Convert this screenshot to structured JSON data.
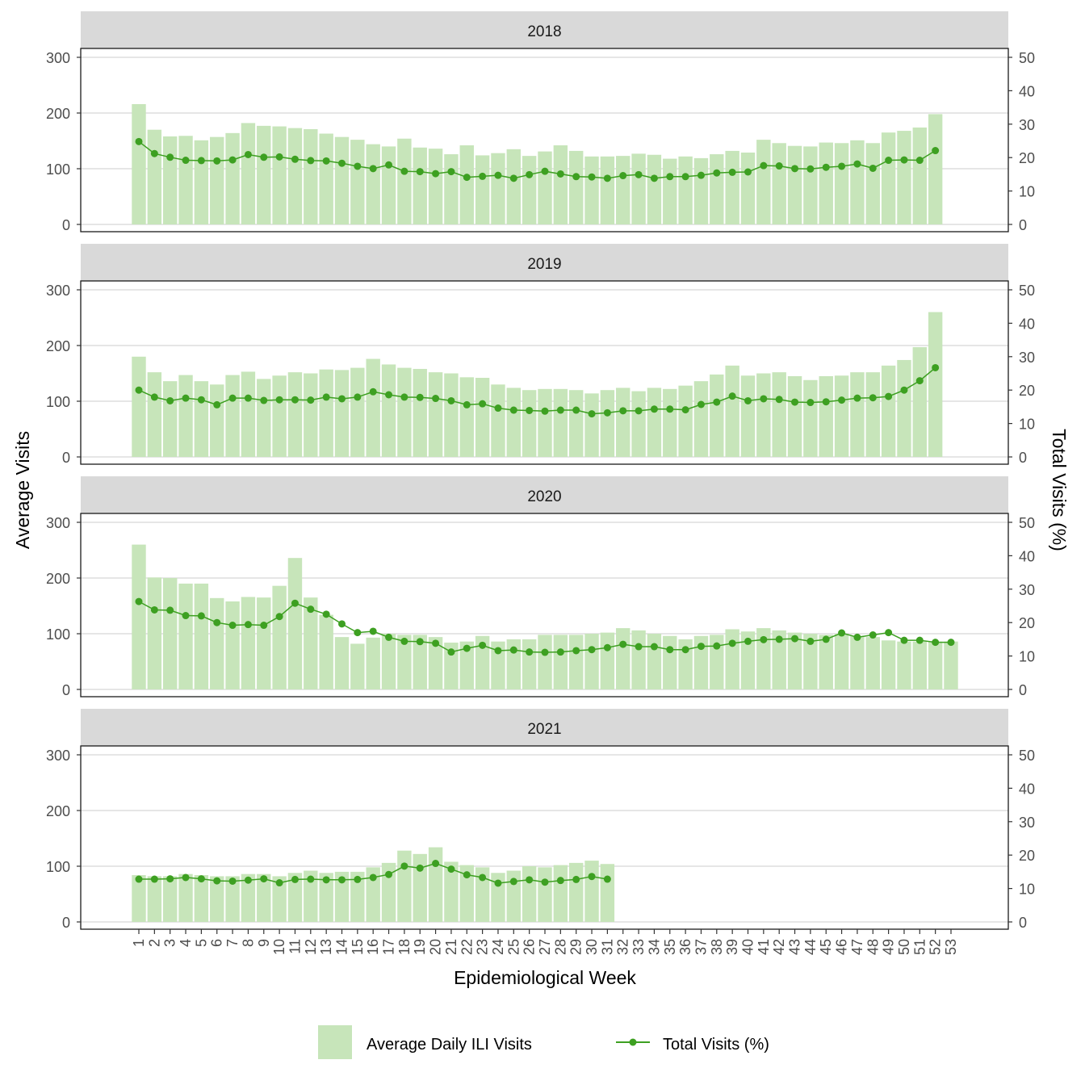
{
  "chart_data": {
    "type": "bar+line",
    "facet_by": "year",
    "xlabel": "Epidemiological Week",
    "ylabel_left": "Average Visits",
    "ylabel_right": "Total Visits (%)",
    "ylim_left": [
      0,
      300
    ],
    "ylim_right": [
      0,
      50
    ],
    "yticks_left": [
      0,
      100,
      200,
      300
    ],
    "yticks_right": [
      0,
      10,
      20,
      30,
      40,
      50
    ],
    "x_ticks": [
      1,
      2,
      3,
      4,
      5,
      6,
      7,
      8,
      9,
      10,
      11,
      12,
      13,
      14,
      15,
      16,
      17,
      18,
      19,
      20,
      21,
      22,
      23,
      24,
      25,
      26,
      27,
      28,
      29,
      30,
      31,
      32,
      33,
      34,
      35,
      36,
      37,
      38,
      39,
      40,
      41,
      42,
      43,
      44,
      45,
      46,
      47,
      48,
      49,
      50,
      51,
      52,
      53
    ],
    "grid": "horizontal",
    "legend_position": "bottom",
    "colors": {
      "bar": "#c7e5ba",
      "line": "#3da021",
      "strip": "#d9d9d9"
    },
    "legend": [
      {
        "label": "Average Daily ILI Visits",
        "kind": "bar"
      },
      {
        "label": "Total Visits (%)",
        "kind": "line"
      }
    ],
    "panels": [
      {
        "year": "2018",
        "bars": [
          216,
          170,
          158,
          159,
          151,
          157,
          164,
          182,
          177,
          176,
          173,
          171,
          163,
          157,
          152,
          144,
          140,
          154,
          138,
          136,
          126,
          142,
          124,
          128,
          135,
          123,
          131,
          142,
          132,
          122,
          122,
          123,
          127,
          125,
          118,
          122,
          119,
          126,
          132,
          129,
          152,
          146,
          141,
          140,
          147,
          146,
          151,
          146,
          165,
          168,
          174,
          198
        ],
        "line": [
          24.8,
          21.2,
          20.1,
          19.2,
          19.1,
          19.0,
          19.3,
          20.9,
          20.1,
          20.2,
          19.5,
          19.1,
          19.0,
          18.3,
          17.4,
          16.7,
          17.8,
          15.9,
          15.8,
          15.2,
          15.8,
          14.1,
          14.4,
          14.7,
          13.8,
          14.9,
          15.9,
          15.1,
          14.3,
          14.2,
          13.8,
          14.6,
          14.9,
          13.8,
          14.3,
          14.3,
          14.7,
          15.4,
          15.6,
          15.7,
          17.6,
          17.5,
          16.7,
          16.6,
          17.1,
          17.4,
          18.1,
          16.8,
          19.2,
          19.3,
          19.2,
          22.1
        ]
      },
      {
        "year": "2019",
        "bars": [
          180,
          152,
          136,
          147,
          136,
          130,
          147,
          153,
          140,
          146,
          152,
          150,
          157,
          156,
          160,
          176,
          166,
          160,
          158,
          152,
          150,
          143,
          142,
          130,
          124,
          120,
          122,
          122,
          120,
          114,
          120,
          124,
          118,
          124,
          122,
          128,
          136,
          148,
          164,
          146,
          150,
          152,
          145,
          138,
          145,
          146,
          152,
          152,
          164,
          174,
          197,
          260
        ],
        "line": [
          20.0,
          17.9,
          16.8,
          17.6,
          17.1,
          15.6,
          17.6,
          17.6,
          16.9,
          17.1,
          17.1,
          17.0,
          17.9,
          17.4,
          17.9,
          19.5,
          18.6,
          17.9,
          17.8,
          17.5,
          16.8,
          15.6,
          15.9,
          14.6,
          14.0,
          13.9,
          13.7,
          14.0,
          14.0,
          12.9,
          13.2,
          13.8,
          13.8,
          14.3,
          14.3,
          14.1,
          15.7,
          16.4,
          18.2,
          16.8,
          17.4,
          17.2,
          16.4,
          16.3,
          16.5,
          17.0,
          17.6,
          17.7,
          18.1,
          20.0,
          22.8,
          26.7
        ]
      },
      {
        "year": "2020",
        "bars": [
          260,
          201,
          200,
          190,
          190,
          164,
          158,
          166,
          165,
          186,
          236,
          165,
          134,
          94,
          82,
          93,
          100,
          98,
          98,
          94,
          84,
          86,
          96,
          86,
          90,
          90,
          98,
          98,
          98,
          100,
          102,
          110,
          106,
          100,
          96,
          90,
          96,
          98,
          108,
          104,
          110,
          106,
          102,
          100,
          98,
          100,
          96,
          94,
          88,
          86,
          86,
          86,
          86
        ],
        "line": [
          26.3,
          23.8,
          23.7,
          22.1,
          22.0,
          20.0,
          19.2,
          19.4,
          19.2,
          21.8,
          25.8,
          24.0,
          22.5,
          19.6,
          17.0,
          17.4,
          15.6,
          14.4,
          14.3,
          13.8,
          11.2,
          12.3,
          13.2,
          11.6,
          11.8,
          11.2,
          11.1,
          11.2,
          11.6,
          11.9,
          12.5,
          13.5,
          12.8,
          12.8,
          11.9,
          11.9,
          12.9,
          13.0,
          13.8,
          14.4,
          14.9,
          15.0,
          15.2,
          14.4,
          15.0,
          16.9,
          15.6,
          16.3,
          17.0,
          14.7,
          14.7,
          14.1,
          14.1
        ]
      },
      {
        "year": "2021",
        "bars": [
          84,
          82,
          82,
          86,
          84,
          82,
          82,
          86,
          86,
          82,
          88,
          92,
          88,
          90,
          90,
          98,
          106,
          128,
          122,
          134,
          108,
          102,
          98,
          88,
          92,
          100,
          98,
          102,
          106,
          110,
          104
        ],
        "line": [
          12.8,
          12.8,
          12.9,
          13.3,
          12.9,
          12.3,
          12.2,
          12.5,
          12.9,
          11.7,
          12.7,
          12.8,
          12.6,
          12.6,
          12.7,
          13.3,
          14.2,
          16.7,
          16.1,
          17.5,
          15.8,
          14.1,
          13.3,
          11.6,
          12.1,
          12.6,
          11.9,
          12.4,
          12.7,
          13.6,
          12.8
        ]
      }
    ]
  }
}
